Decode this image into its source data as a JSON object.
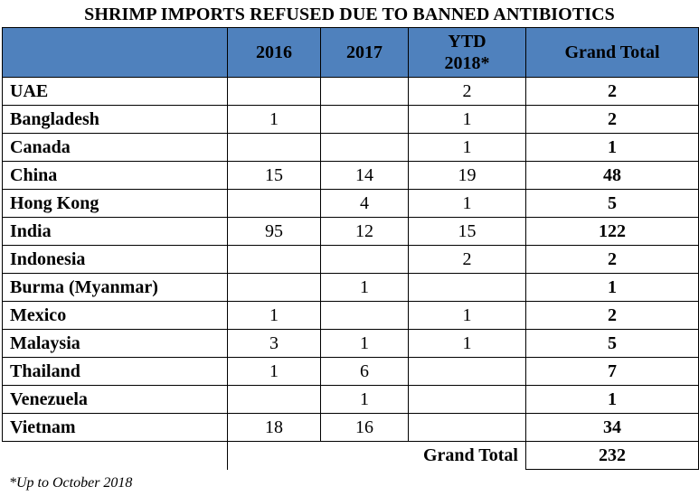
{
  "title": "SHRIMP IMPORTS REFUSED DUE TO BANNED ANTIBIOTICS",
  "header_color": "#4f81bd",
  "columns": {
    "country": "",
    "y2016": "2016",
    "y2017": "2017",
    "ytd_line1": "YTD",
    "ytd_line2": "2018*",
    "total": "Grand Total"
  },
  "rows": [
    {
      "country": "UAE",
      "y2016": "",
      "y2017": "",
      "ytd": "2",
      "total": "2"
    },
    {
      "country": "Bangladesh",
      "y2016": "1",
      "y2017": "",
      "ytd": "1",
      "total": "2"
    },
    {
      "country": "Canada",
      "y2016": "",
      "y2017": "",
      "ytd": "1",
      "total": "1"
    },
    {
      "country": "China",
      "y2016": "15",
      "y2017": "14",
      "ytd": "19",
      "total": "48"
    },
    {
      "country": "Hong Kong",
      "y2016": "",
      "y2017": "4",
      "ytd": "1",
      "total": "5"
    },
    {
      "country": "India",
      "y2016": "95",
      "y2017": "12",
      "ytd": "15",
      "total": "122"
    },
    {
      "country": "Indonesia",
      "y2016": "",
      "y2017": "",
      "ytd": "2",
      "total": "2"
    },
    {
      "country": "Burma (Myanmar)",
      "y2016": "",
      "y2017": "1",
      "ytd": "",
      "total": "1"
    },
    {
      "country": "Mexico",
      "y2016": "1",
      "y2017": "",
      "ytd": "1",
      "total": "2"
    },
    {
      "country": "Malaysia",
      "y2016": "3",
      "y2017": "1",
      "ytd": "1",
      "total": "5"
    },
    {
      "country": "Thailand",
      "y2016": "1",
      "y2017": "6",
      "ytd": "",
      "total": "7"
    },
    {
      "country": "Venezuela",
      "y2016": "",
      "y2017": "1",
      "ytd": "",
      "total": "1"
    },
    {
      "country": "Vietnam",
      "y2016": "18",
      "y2017": "16",
      "ytd": "",
      "total": "34"
    }
  ],
  "grand_total": {
    "label": "Grand Total",
    "value": "232"
  },
  "footnote": "*Up to October 2018"
}
